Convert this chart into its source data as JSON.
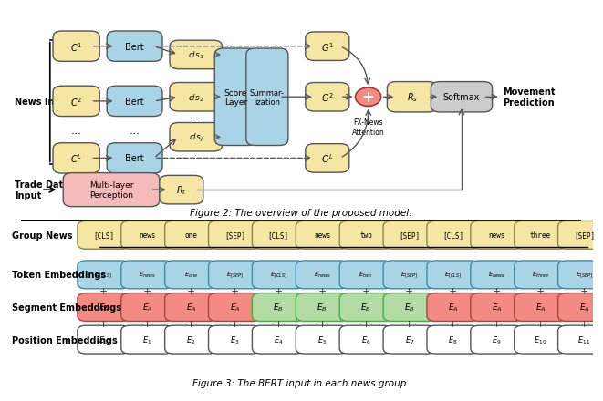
{
  "fig2_caption": "Figure 2: The overview of the proposed model.",
  "fig3_caption": "Figure 3: The BERT input in each news group.",
  "group_news_tokens": [
    "[CLS]",
    "news",
    "one",
    "[SEP]",
    "[CLS]",
    "news",
    "two",
    "[SEP]",
    "[CLS]",
    "news",
    "three",
    "[SEP]"
  ],
  "token_embed_labels": [
    "E_{[CLS]}",
    "E_{news}",
    "E_{one}",
    "E_{[SEP]}",
    "E_{[CLS]}",
    "E_{news}",
    "E_{two}",
    "E_{[SEP]}",
    "E_{[CLS]}",
    "E_{news}",
    "E_{three}",
    "E_{[SEP]}"
  ],
  "segment_labels": [
    "E_A",
    "E_A",
    "E_A",
    "E_A",
    "E_B",
    "E_B",
    "E_B",
    "E_B",
    "E_A",
    "E_A",
    "E_A",
    "E_A"
  ],
  "segment_colors": [
    "#f28b82",
    "#f28b82",
    "#f28b82",
    "#f28b82",
    "#b5dba4",
    "#b5dba4",
    "#b5dba4",
    "#b5dba4",
    "#f28b82",
    "#f28b82",
    "#f28b82",
    "#f28b82"
  ],
  "position_labels": [
    "E_0",
    "E_1",
    "E_2",
    "E_3",
    "E_4",
    "E_5",
    "E_6",
    "E_7",
    "E_8",
    "E_9",
    "E_{10}",
    "E_{11}"
  ],
  "group_news_color": "#f5e6a3",
  "token_embed_color": "#a8d4e6",
  "position_embed_color": "#ffffff",
  "box_edge_color": "#555555",
  "row_labels": [
    "Group News",
    "Token Embeddings",
    "Segment Embeddings",
    "Position Embeddings"
  ],
  "plus_sign": "+",
  "fig2": {
    "news_input_label": "News Input",
    "trade_data_label": "Trade Data\nInput",
    "movement_pred_label": "Movement\nPrediction",
    "c_labels": [
      "C^1",
      "C^2",
      "C^L"
    ],
    "bert_color": "#a8d4e6",
    "c_color": "#f5e6a3",
    "g_color": "#f5e6a3",
    "cls_color": "#f5e6a3",
    "score_color": "#a8d4e6",
    "summ_color": "#a8d4e6",
    "mlp_color": "#f5bbbb",
    "rt_color": "#f5e6a3",
    "rs_color": "#f5e6a3",
    "plus_color": "#f28b82",
    "softmax_color": "#cccccc"
  }
}
